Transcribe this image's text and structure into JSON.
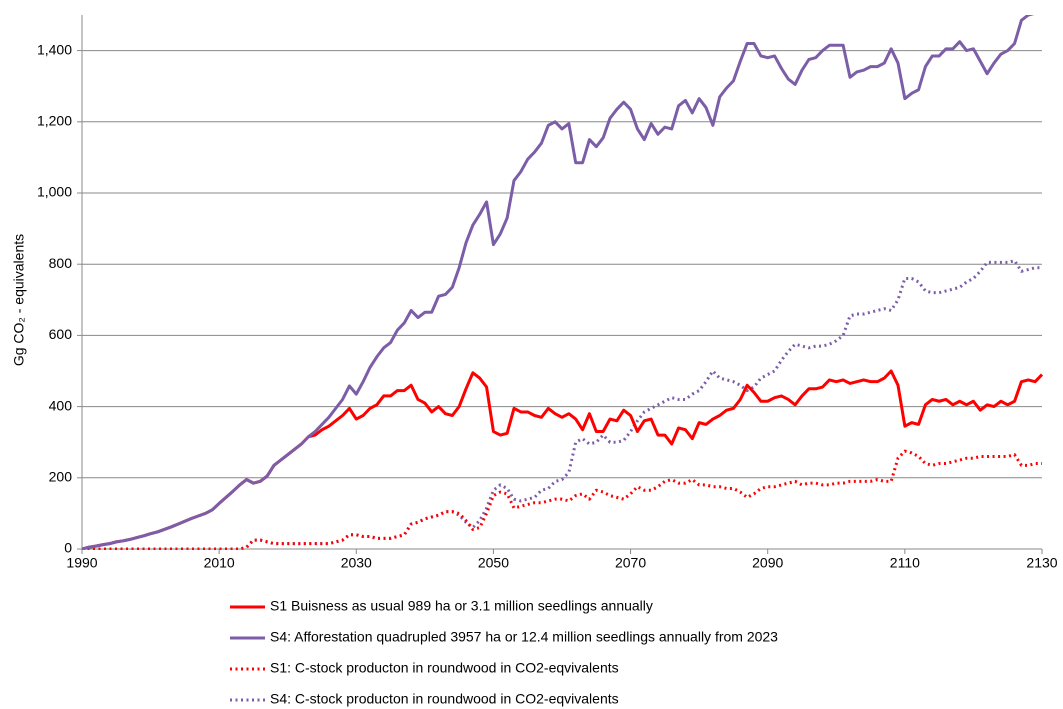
{
  "chart_data": {
    "type": "line",
    "y_label": "Gg CO₂ - equivalents",
    "x": [
      1990,
      1991,
      1992,
      1993,
      1994,
      1995,
      1996,
      1997,
      1998,
      1999,
      2000,
      2001,
      2002,
      2003,
      2004,
      2005,
      2006,
      2007,
      2008,
      2009,
      2010,
      2011,
      2012,
      2013,
      2014,
      2015,
      2016,
      2017,
      2018,
      2019,
      2020,
      2021,
      2022,
      2023,
      2024,
      2025,
      2026,
      2027,
      2028,
      2029,
      2030,
      2031,
      2032,
      2033,
      2034,
      2035,
      2036,
      2037,
      2038,
      2039,
      2040,
      2041,
      2042,
      2043,
      2044,
      2045,
      2046,
      2047,
      2048,
      2049,
      2050,
      2051,
      2052,
      2053,
      2054,
      2055,
      2056,
      2057,
      2058,
      2059,
      2060,
      2061,
      2062,
      2063,
      2064,
      2065,
      2066,
      2067,
      2068,
      2069,
      2070,
      2071,
      2072,
      2073,
      2074,
      2075,
      2076,
      2077,
      2078,
      2079,
      2080,
      2081,
      2082,
      2083,
      2084,
      2085,
      2086,
      2087,
      2088,
      2089,
      2090,
      2091,
      2092,
      2093,
      2094,
      2095,
      2096,
      2097,
      2098,
      2099,
      2100,
      2101,
      2102,
      2103,
      2104,
      2105,
      2106,
      2107,
      2108,
      2109,
      2110,
      2111,
      2112,
      2113,
      2114,
      2115,
      2116,
      2117,
      2118,
      2119,
      2120,
      2121,
      2122,
      2123,
      2124,
      2125,
      2126,
      2127,
      2128,
      2129,
      2130
    ],
    "series": [
      {
        "name": "S1 Buisness as usual 989 ha or 3.1 million seedlings annually",
        "color": "#ff0000",
        "linestyle": "solid",
        "values": [
          0,
          5,
          8,
          12,
          15,
          20,
          23,
          27,
          32,
          37,
          43,
          48,
          55,
          62,
          70,
          78,
          86,
          93,
          100,
          110,
          128,
          145,
          162,
          180,
          195,
          185,
          190,
          205,
          235,
          250,
          265,
          280,
          295,
          315,
          320,
          335,
          345,
          360,
          375,
          395,
          365,
          375,
          395,
          405,
          430,
          430,
          445,
          445,
          460,
          420,
          410,
          385,
          400,
          380,
          375,
          400,
          450,
          495,
          480,
          455,
          330,
          320,
          325,
          395,
          385,
          385,
          375,
          370,
          395,
          380,
          370,
          380,
          365,
          335,
          380,
          330,
          330,
          365,
          360,
          390,
          375,
          330,
          360,
          365,
          320,
          320,
          295,
          340,
          335,
          310,
          355,
          350,
          365,
          375,
          390,
          395,
          420,
          460,
          440,
          415,
          415,
          425,
          430,
          420,
          405,
          430,
          450,
          450,
          455,
          475,
          470,
          475,
          465,
          470,
          475,
          470,
          470,
          480,
          500,
          460,
          345,
          355,
          350,
          405,
          420,
          415,
          420,
          405,
          415,
          405,
          415,
          390,
          405,
          400,
          415,
          405,
          415,
          470,
          475,
          470,
          490
        ]
      },
      {
        "name": "S4: Afforestation quadrupled 3957 ha or 12.4 million seedlings annually from 2023",
        "color": "#7b5ea7",
        "linestyle": "solid",
        "values": [
          0,
          5,
          8,
          12,
          15,
          20,
          23,
          27,
          32,
          37,
          43,
          48,
          55,
          62,
          70,
          78,
          86,
          93,
          100,
          110,
          128,
          145,
          162,
          180,
          195,
          185,
          190,
          205,
          235,
          250,
          265,
          280,
          295,
          315,
          330,
          350,
          370,
          395,
          420,
          458,
          435,
          470,
          510,
          540,
          565,
          580,
          615,
          635,
          670,
          650,
          665,
          665,
          710,
          715,
          735,
          790,
          860,
          910,
          940,
          975,
          855,
          885,
          930,
          1035,
          1060,
          1095,
          1115,
          1140,
          1190,
          1200,
          1180,
          1195,
          1085,
          1085,
          1150,
          1130,
          1155,
          1210,
          1235,
          1255,
          1235,
          1180,
          1150,
          1195,
          1165,
          1185,
          1180,
          1245,
          1260,
          1225,
          1265,
          1240,
          1190,
          1270,
          1295,
          1315,
          1370,
          1420,
          1420,
          1385,
          1380,
          1385,
          1350,
          1320,
          1305,
          1345,
          1375,
          1380,
          1400,
          1415,
          1415,
          1415,
          1325,
          1340,
          1345,
          1355,
          1355,
          1365,
          1405,
          1365,
          1265,
          1280,
          1290,
          1355,
          1385,
          1385,
          1405,
          1405,
          1425,
          1400,
          1405,
          1370,
          1335,
          1365,
          1390,
          1400,
          1420,
          1485,
          1500,
          1505,
          1510
        ]
      },
      {
        "name": "S1: C-stock producton in roundwood in CO2-eqvivalents",
        "color": "#ff0000",
        "linestyle": "dotted",
        "values": [
          0,
          0,
          0,
          0,
          0,
          0,
          0,
          0,
          0,
          0,
          0,
          0,
          0,
          0,
          0,
          0,
          0,
          0,
          0,
          0,
          0,
          0,
          0,
          0,
          5,
          25,
          25,
          20,
          15,
          15,
          15,
          15,
          15,
          15,
          15,
          15,
          15,
          20,
          25,
          40,
          40,
          35,
          35,
          30,
          30,
          30,
          35,
          40,
          70,
          75,
          85,
          90,
          95,
          105,
          105,
          100,
          80,
          55,
          60,
          100,
          150,
          160,
          155,
          115,
          120,
          125,
          130,
          130,
          135,
          140,
          140,
          135,
          150,
          155,
          140,
          165,
          160,
          150,
          145,
          140,
          155,
          175,
          165,
          165,
          175,
          190,
          195,
          185,
          185,
          195,
          180,
          180,
          175,
          175,
          170,
          170,
          160,
          145,
          155,
          170,
          175,
          175,
          180,
          185,
          190,
          180,
          185,
          185,
          180,
          180,
          185,
          185,
          190,
          190,
          190,
          190,
          195,
          190,
          190,
          255,
          275,
          270,
          260,
          240,
          235,
          240,
          240,
          245,
          250,
          255,
          255,
          260,
          260,
          260,
          260,
          260,
          265,
          235,
          235,
          240,
          240
        ]
      },
      {
        "name": "S4: C-stock producton in roundwood in CO2-eqvivalents",
        "color": "#7b5ea7",
        "linestyle": "dotted",
        "values": [
          0,
          0,
          0,
          0,
          0,
          0,
          0,
          0,
          0,
          0,
          0,
          0,
          0,
          0,
          0,
          0,
          0,
          0,
          0,
          0,
          0,
          0,
          0,
          0,
          5,
          25,
          25,
          20,
          15,
          15,
          15,
          15,
          15,
          15,
          15,
          15,
          15,
          20,
          25,
          40,
          40,
          35,
          35,
          30,
          30,
          30,
          35,
          40,
          70,
          75,
          85,
          90,
          95,
          105,
          105,
          95,
          75,
          60,
          80,
          115,
          165,
          180,
          170,
          140,
          135,
          140,
          145,
          165,
          170,
          190,
          195,
          215,
          300,
          310,
          295,
          300,
          320,
          300,
          300,
          305,
          330,
          360,
          385,
          395,
          405,
          415,
          425,
          420,
          420,
          435,
          445,
          470,
          500,
          480,
          475,
          470,
          460,
          445,
          455,
          480,
          490,
          500,
          530,
          555,
          575,
          570,
          565,
          570,
          570,
          575,
          585,
          600,
          655,
          660,
          660,
          665,
          670,
          675,
          670,
          700,
          760,
          760,
          750,
          725,
          720,
          720,
          725,
          730,
          735,
          750,
          760,
          780,
          805,
          805,
          805,
          805,
          810,
          780,
          785,
          790,
          790
        ]
      }
    ],
    "xlim": [
      1990,
      2130
    ],
    "xticks": [
      1990,
      2010,
      2030,
      2050,
      2070,
      2090,
      2110,
      2130
    ],
    "ylim": [
      0,
      1500
    ],
    "yticks": [
      0,
      200,
      400,
      600,
      800,
      {
        "value": 1000,
        "label": "1,000"
      },
      {
        "value": 1200,
        "label": "1,200"
      },
      {
        "value": 1400,
        "label": "1,400"
      }
    ],
    "grid": true,
    "legend": "bottom"
  }
}
